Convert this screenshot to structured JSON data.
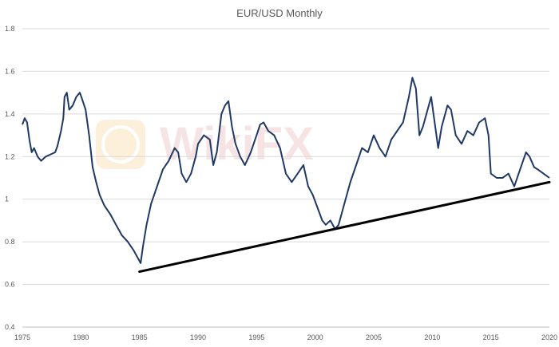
{
  "chart_data": {
    "type": "line",
    "title": "EUR/USD Monthly",
    "xlabel": "",
    "ylabel": "",
    "xlim": [
      1975,
      2020
    ],
    "ylim": [
      0.4,
      1.8
    ],
    "x_ticks": [
      1975,
      1980,
      1985,
      1990,
      1995,
      2000,
      2005,
      2010,
      2015,
      2020
    ],
    "y_ticks": [
      0.4,
      0.6,
      0.8,
      1,
      1.2,
      1.4,
      1.6,
      1.8
    ],
    "grid": "horizontal",
    "legend": "none",
    "colors": {
      "series": "#1f3864",
      "trendline": "#000000",
      "grid": "#d9d9d9",
      "text": "#595959"
    },
    "series": [
      {
        "x": [
          1975.0,
          1975.2,
          1975.4,
          1975.6,
          1975.8,
          1976.0,
          1976.3,
          1976.6,
          1977.0,
          1977.4,
          1977.8,
          1978.0,
          1978.3,
          1978.5,
          1978.6,
          1978.8,
          1979.0,
          1979.3,
          1979.6,
          1979.9,
          1980.1,
          1980.4,
          1980.7,
          1981.0,
          1981.3,
          1981.6,
          1982.0,
          1982.5,
          1983.0,
          1983.5,
          1984.0,
          1984.5,
          1984.9,
          1985.1,
          1985.3,
          1985.6,
          1986.0,
          1986.5,
          1987.0,
          1987.5,
          1988.0,
          1988.3,
          1988.6,
          1989.0,
          1989.4,
          1989.8,
          1990.0,
          1990.5,
          1991.0,
          1991.3,
          1991.6,
          1992.0,
          1992.3,
          1992.6,
          1992.9,
          1993.2,
          1993.6,
          1994.0,
          1994.5,
          1995.0,
          1995.3,
          1995.6,
          1996.0,
          1996.5,
          1997.0,
          1997.5,
          1998.0,
          1998.5,
          1999.0,
          1999.4,
          1999.8,
          2000.2,
          2000.6,
          2000.9,
          2001.3,
          2001.7,
          2002.0,
          2002.5,
          2003.0,
          2003.5,
          2004.0,
          2004.5,
          2005.0,
          2005.5,
          2006.0,
          2006.5,
          2007.0,
          2007.5,
          2008.0,
          2008.3,
          2008.6,
          2008.9,
          2009.2,
          2009.6,
          2009.9,
          2010.2,
          2010.5,
          2010.8,
          2011.0,
          2011.3,
          2011.6,
          2012.0,
          2012.5,
          2013.0,
          2013.5,
          2014.0,
          2014.5,
          2014.8,
          2015.0,
          2015.5,
          2016.0,
          2016.5,
          2017.0,
          2017.5,
          2018.0,
          2018.3,
          2018.7,
          2019.0,
          2019.5,
          2020.0
        ],
        "y": [
          1.35,
          1.38,
          1.36,
          1.28,
          1.22,
          1.24,
          1.2,
          1.18,
          1.2,
          1.21,
          1.22,
          1.25,
          1.32,
          1.38,
          1.48,
          1.5,
          1.42,
          1.44,
          1.48,
          1.5,
          1.47,
          1.42,
          1.3,
          1.15,
          1.08,
          1.02,
          0.97,
          0.93,
          0.88,
          0.83,
          0.8,
          0.76,
          0.72,
          0.7,
          0.78,
          0.88,
          0.98,
          1.06,
          1.14,
          1.18,
          1.24,
          1.22,
          1.12,
          1.08,
          1.12,
          1.2,
          1.26,
          1.3,
          1.28,
          1.16,
          1.22,
          1.4,
          1.44,
          1.46,
          1.34,
          1.26,
          1.2,
          1.16,
          1.22,
          1.3,
          1.35,
          1.36,
          1.32,
          1.3,
          1.24,
          1.12,
          1.08,
          1.12,
          1.16,
          1.06,
          1.02,
          0.96,
          0.9,
          0.88,
          0.9,
          0.86,
          0.88,
          0.98,
          1.08,
          1.16,
          1.24,
          1.22,
          1.3,
          1.24,
          1.2,
          1.28,
          1.32,
          1.36,
          1.48,
          1.57,
          1.52,
          1.3,
          1.34,
          1.42,
          1.48,
          1.36,
          1.24,
          1.34,
          1.38,
          1.44,
          1.42,
          1.3,
          1.26,
          1.32,
          1.3,
          1.36,
          1.38,
          1.3,
          1.12,
          1.1,
          1.1,
          1.12,
          1.06,
          1.14,
          1.22,
          1.2,
          1.15,
          1.14,
          1.12,
          1.1
        ]
      },
      {
        "x": [
          1985.0,
          2020.0
        ],
        "y": [
          0.66,
          1.08
        ]
      }
    ]
  }
}
